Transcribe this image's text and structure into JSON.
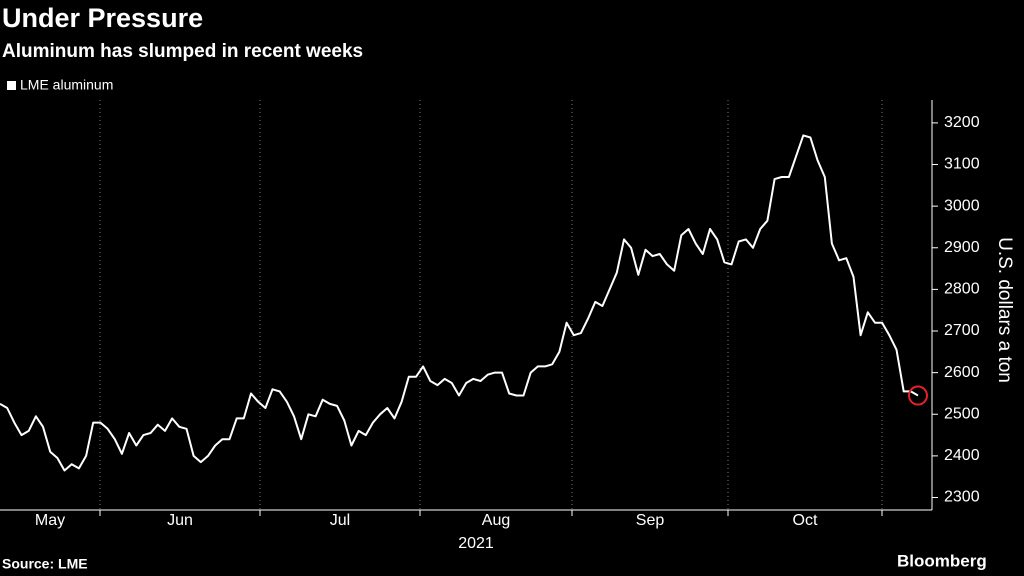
{
  "chart_data": {
    "type": "line",
    "title": "Under Pressure",
    "subtitle": "Aluminum has slumped in recent weeks",
    "x_labels": [
      "May",
      "Jun",
      "Jul",
      "Aug",
      "Sep",
      "Oct"
    ],
    "year": "2021",
    "y_label": "U.S. dollars a ton",
    "source": "Source: LME",
    "brand": "Bloomberg",
    "ylim": [
      2270,
      3255
    ],
    "yticks": [
      2300,
      2400,
      2500,
      2600,
      2700,
      2800,
      2900,
      3000,
      3100,
      3200
    ],
    "series": [
      {
        "name": "LME aluminum",
        "color": "#ffffff",
        "values": [
          2525,
          2515,
          2480,
          2450,
          2460,
          2495,
          2470,
          2410,
          2395,
          2365,
          2380,
          2370,
          2400,
          2480,
          2480,
          2465,
          2440,
          2405,
          2455,
          2425,
          2450,
          2455,
          2475,
          2460,
          2490,
          2470,
          2465,
          2400,
          2385,
          2400,
          2425,
          2440,
          2440,
          2490,
          2490,
          2550,
          2530,
          2515,
          2560,
          2555,
          2530,
          2495,
          2440,
          2500,
          2495,
          2535,
          2525,
          2520,
          2485,
          2425,
          2460,
          2450,
          2480,
          2500,
          2515,
          2490,
          2530,
          2590,
          2590,
          2615,
          2580,
          2570,
          2585,
          2575,
          2545,
          2575,
          2585,
          2580,
          2595,
          2600,
          2600,
          2550,
          2545,
          2545,
          2600,
          2615,
          2615,
          2620,
          2650,
          2720,
          2690,
          2695,
          2730,
          2770,
          2760,
          2800,
          2840,
          2920,
          2900,
          2835,
          2895,
          2880,
          2885,
          2860,
          2845,
          2930,
          2945,
          2910,
          2885,
          2945,
          2920,
          2865,
          2860,
          2915,
          2920,
          2900,
          2945,
          2965,
          3065,
          3070,
          3070,
          3120,
          3170,
          3165,
          3110,
          3070,
          2910,
          2870,
          2875,
          2830,
          2690,
          2745,
          2720,
          2720,
          2690,
          2655,
          2555,
          2555,
          2545
        ]
      }
    ],
    "highlight_color": "#e8202a"
  }
}
